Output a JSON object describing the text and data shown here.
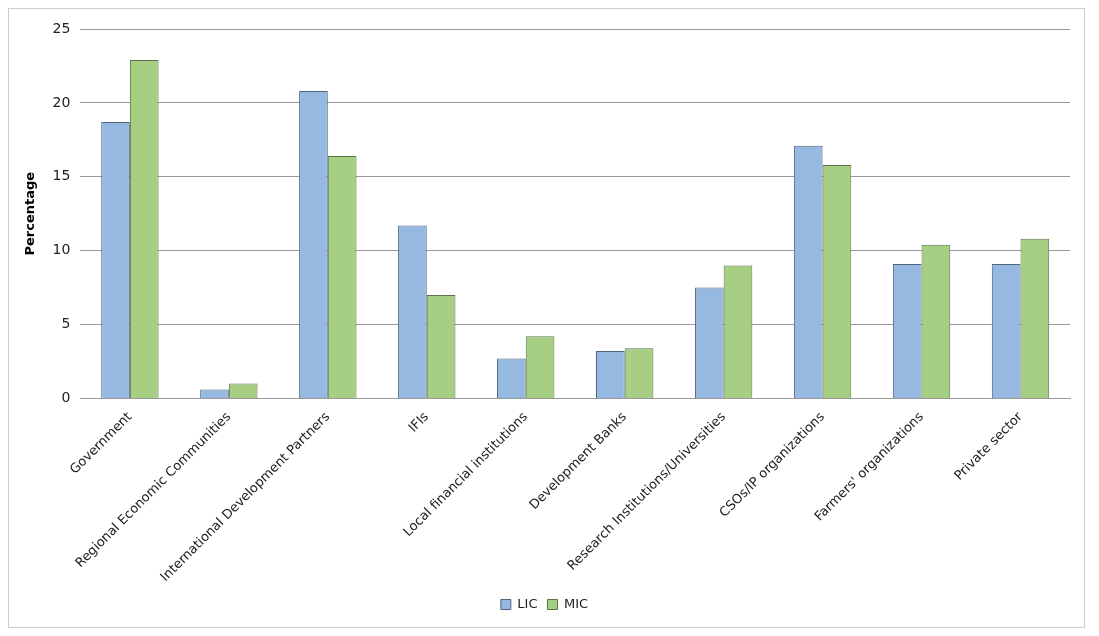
{
  "chart_data": {
    "type": "bar",
    "ylabel": "Percentage",
    "categories": [
      "Government",
      "Regional Economic Communities",
      "International Development Partners",
      "IFIs",
      "Local financial institutions",
      "Development Banks",
      "Research Institutions/Universities",
      "CSOs/IP organizations",
      "Farmers' organizations",
      "Private sector"
    ],
    "series": [
      {
        "name": "LIC",
        "color": "#95b9e0",
        "values": [
          18.7,
          0.6,
          20.8,
          11.7,
          2.7,
          3.2,
          7.5,
          17.1,
          9.1,
          9.1
        ]
      },
      {
        "name": "MIC",
        "color": "#a6cf84",
        "values": [
          22.9,
          1.0,
          16.4,
          7.0,
          4.2,
          3.4,
          9.0,
          15.8,
          10.4,
          10.8
        ]
      }
    ],
    "ylim": [
      0,
      25
    ],
    "yticks": [
      0,
      5,
      10,
      15,
      20,
      25
    ],
    "grid": "y",
    "legend": "bottom"
  }
}
